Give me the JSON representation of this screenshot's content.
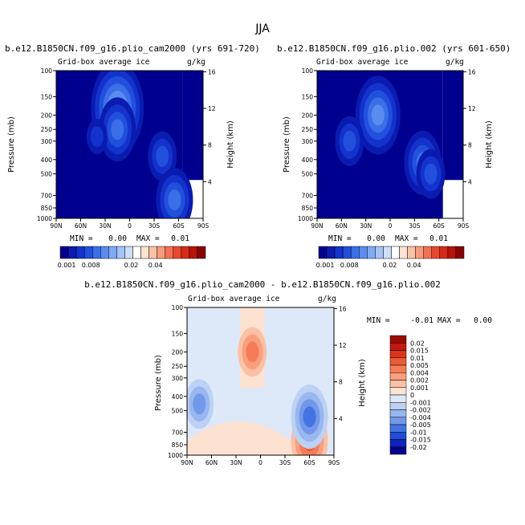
{
  "figure": {
    "title": "JJA"
  },
  "chart_data": [
    {
      "type": "heatmap",
      "title": "b.e12.B1850CN.f09_g16.plio_cam2000 (yrs 691-720)",
      "subtitle_left": "Grid-box average ice",
      "subtitle_right": "g/kg",
      "ylabel": "Pressure (mb)",
      "ylabel_right": "Height (km)",
      "x_ticks": [
        "90N",
        "60N",
        "30N",
        "0",
        "30S",
        "60S",
        "90S"
      ],
      "x_tick_values": [
        90,
        60,
        30,
        0,
        -30,
        -60,
        -90
      ],
      "y_ticks": [
        "100",
        "150",
        "200",
        "250",
        "300",
        "400",
        "500",
        "700",
        "850",
        "1000"
      ],
      "y_tick_values": [
        100,
        150,
        200,
        250,
        300,
        400,
        500,
        700,
        850,
        1000
      ],
      "height_ticks": [
        "16",
        "12",
        "8",
        "4"
      ],
      "height_tick_values": [
        16,
        12,
        8,
        4
      ],
      "ylim": [
        1000,
        100
      ],
      "xlim": [
        90,
        -90
      ],
      "min_label": "MIN =",
      "min_value": "0.00",
      "max_label": "MAX =",
      "max_value": "0.01",
      "features": [
        {
          "lat": 15,
          "p": 180,
          "level": 6
        },
        {
          "lat": 15,
          "p": 250,
          "level": 4
        },
        {
          "lat": 40,
          "p": 280,
          "level": 2
        },
        {
          "lat": -40,
          "p": 380,
          "level": 3
        },
        {
          "lat": -55,
          "p": 750,
          "level": 4
        }
      ]
    },
    {
      "type": "heatmap",
      "title": "b.e12.B1850CN.f09_g16.plio.002 (yrs 601-650)",
      "subtitle_left": "Grid-box average ice",
      "subtitle_right": "g/kg",
      "ylabel": "Pressure (mb)",
      "ylabel_right": "Height (km)",
      "x_ticks": [
        "90N",
        "60N",
        "30N",
        "0",
        "30S",
        "60S",
        "90S"
      ],
      "x_tick_values": [
        90,
        60,
        30,
        0,
        -30,
        -60,
        -90
      ],
      "y_ticks": [
        "100",
        "150",
        "200",
        "250",
        "300",
        "400",
        "500",
        "700",
        "850",
        "1000"
      ],
      "y_tick_values": [
        100,
        150,
        200,
        250,
        300,
        400,
        500,
        700,
        850,
        1000
      ],
      "height_ticks": [
        "16",
        "12",
        "8",
        "4"
      ],
      "height_tick_values": [
        16,
        12,
        8,
        4
      ],
      "ylim": [
        1000,
        100
      ],
      "xlim": [
        90,
        -90
      ],
      "min_label": "MIN =",
      "min_value": "0.00",
      "max_label": "MAX =",
      "max_value": "0.01",
      "features": [
        {
          "lat": 15,
          "p": 200,
          "level": 5
        },
        {
          "lat": 50,
          "p": 300,
          "level": 3
        },
        {
          "lat": -40,
          "p": 420,
          "level": 4
        },
        {
          "lat": -50,
          "p": 500,
          "level": 3
        }
      ]
    },
    {
      "type": "heatmap",
      "title": "b.e12.B1850CN.f09_g16.plio_cam2000 - b.e12.B1850CN.f09_g16.plio.002",
      "subtitle_left": "Grid-box average ice",
      "subtitle_right": "g/kg",
      "ylabel": "Pressure (mb)",
      "ylabel_right": "Height (km)",
      "x_ticks": [
        "90N",
        "60N",
        "30N",
        "0",
        "30S",
        "60S",
        "90S"
      ],
      "x_tick_values": [
        90,
        60,
        30,
        0,
        -30,
        -60,
        -90
      ],
      "y_ticks": [
        "100",
        "150",
        "200",
        "250",
        "300",
        "400",
        "500",
        "700",
        "850",
        "1000"
      ],
      "y_tick_values": [
        100,
        150,
        200,
        250,
        300,
        400,
        500,
        700,
        850,
        1000
      ],
      "height_ticks": [
        "16",
        "12",
        "8",
        "4"
      ],
      "height_tick_values": [
        16,
        12,
        8,
        4
      ],
      "ylim": [
        1000,
        100
      ],
      "xlim": [
        90,
        -90
      ],
      "min_label": "MIN =",
      "min_value": "-0.01",
      "max_label": "MAX =",
      "max_value": "0.00",
      "features": [
        {
          "lat": 10,
          "p": 200,
          "level": 3
        },
        {
          "lat": -60,
          "p": 800,
          "level": 4
        },
        {
          "lat": 75,
          "p": 450,
          "level": -3
        },
        {
          "lat": -60,
          "p": 550,
          "level": -4
        }
      ]
    }
  ],
  "colorbar_abs": {
    "labels": [
      "0.001",
      "0.008",
      "0.02",
      "0.04"
    ],
    "colors": [
      "#00008f",
      "#0a1bb0",
      "#1433cc",
      "#2150dd",
      "#3a6fe8",
      "#5a8cf0",
      "#7faaf5",
      "#a5c4f8",
      "#cddff8",
      "#ffffff",
      "#fde2d2",
      "#fbc2a6",
      "#f89b7c",
      "#f47153",
      "#e8482f",
      "#d82a17",
      "#b81309",
      "#8a0303"
    ]
  },
  "colorbar_diff": {
    "labels": [
      "0.02",
      "0.015",
      "0.01",
      "0.005",
      "0.004",
      "0.002",
      "0.001",
      "0",
      "-0.001",
      "-0.002",
      "-0.004",
      "-0.005",
      "-0.01",
      "-0.015",
      "-0.02"
    ],
    "colors": [
      "#9a0a04",
      "#c21a0b",
      "#dc3418",
      "#ec5a34",
      "#f57c58",
      "#fa9f7d",
      "#fcc1a5",
      "#fde2d2",
      "#dde9f8",
      "#bcd1f3",
      "#98b7ee",
      "#7198ea",
      "#4473e3",
      "#1f4cd9",
      "#0b26bf",
      "#05038c"
    ]
  }
}
